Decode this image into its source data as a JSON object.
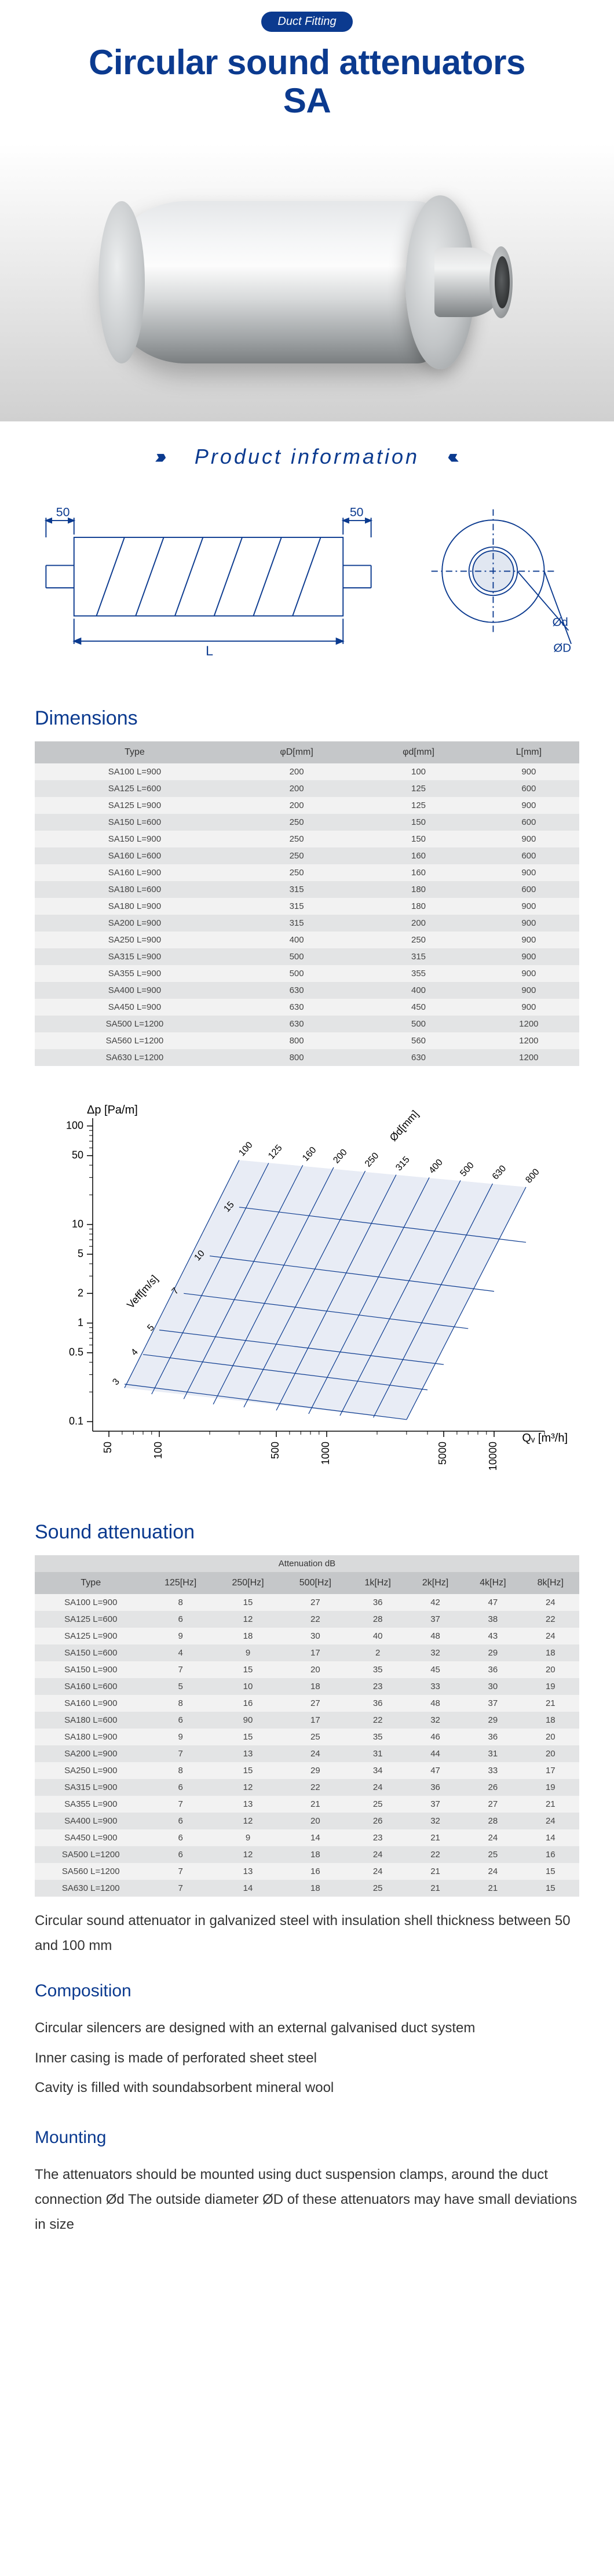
{
  "header": {
    "badge": "Duct Fitting",
    "title_line1": "Circular sound attenuators",
    "title_line2": "SA"
  },
  "section_band": {
    "title": "Product   information"
  },
  "diagram": {
    "label_50_left": "50",
    "label_50_right": "50",
    "label_L": "L",
    "label_d": "Ød",
    "label_D": "ØD",
    "stroke": "#0b3a8f"
  },
  "dimensions": {
    "heading": "Dimensions",
    "columns": [
      "Type",
      "φD[mm]",
      "φd[mm]",
      "L[mm]"
    ],
    "rows": [
      [
        "SA100 L=900",
        "200",
        "100",
        "900"
      ],
      [
        "SA125 L=600",
        "200",
        "125",
        "600"
      ],
      [
        "SA125 L=900",
        "200",
        "125",
        "900"
      ],
      [
        "SA150 L=600",
        "250",
        "150",
        "600"
      ],
      [
        "SA150 L=900",
        "250",
        "150",
        "900"
      ],
      [
        "SA160 L=600",
        "250",
        "160",
        "600"
      ],
      [
        "SA160 L=900",
        "250",
        "160",
        "900"
      ],
      [
        "SA180 L=600",
        "315",
        "180",
        "600"
      ],
      [
        "SA180 L=900",
        "315",
        "180",
        "900"
      ],
      [
        "SA200 L=900",
        "315",
        "200",
        "900"
      ],
      [
        "SA250 L=900",
        "400",
        "250",
        "900"
      ],
      [
        "SA315 L=900",
        "500",
        "315",
        "900"
      ],
      [
        "SA355 L=900",
        "500",
        "355",
        "900"
      ],
      [
        "SA400 L=900",
        "630",
        "400",
        "900"
      ],
      [
        "SA450 L=900",
        "630",
        "450",
        "900"
      ],
      [
        "SA500 L=1200",
        "630",
        "500",
        "1200"
      ],
      [
        "SA560 L=1200",
        "800",
        "560",
        "1200"
      ],
      [
        "SA630 L=1200",
        "800",
        "630",
        "1200"
      ]
    ]
  },
  "chart": {
    "y_label": "Δp [Pa/m]",
    "x_label": "Qᵥ [m³/h]",
    "diam_label": "Ød[mm]",
    "vel_label": "Veff[m/s]",
    "y_ticks": [
      "100",
      "50",
      "10",
      "5",
      "2",
      "1",
      "0.5",
      "0.1"
    ],
    "y_vals": [
      100,
      50,
      10,
      5,
      2,
      1,
      0.5,
      0.1
    ],
    "x_ticks": [
      "50",
      "100",
      "500",
      "1000",
      "5000",
      "10000"
    ],
    "x_vals": [
      50,
      100,
      500,
      1000,
      5000,
      10000
    ],
    "x_min": 40,
    "x_max": 20000,
    "y_min": 0.08,
    "y_max": 120,
    "diameters": [
      "100",
      "125",
      "160",
      "200",
      "250",
      "315",
      "400",
      "500",
      "630",
      "800"
    ],
    "diam_lines": [
      {
        "x1": 62,
        "y1": 0.22,
        "x2": 300,
        "y2": 45
      },
      {
        "x1": 90,
        "y1": 0.19,
        "x2": 450,
        "y2": 42
      },
      {
        "x1": 140,
        "y1": 0.17,
        "x2": 720,
        "y2": 40
      },
      {
        "x1": 210,
        "y1": 0.15,
        "x2": 1100,
        "y2": 38
      },
      {
        "x1": 320,
        "y1": 0.14,
        "x2": 1700,
        "y2": 35
      },
      {
        "x1": 500,
        "y1": 0.13,
        "x2": 2600,
        "y2": 32
      },
      {
        "x1": 780,
        "y1": 0.12,
        "x2": 4100,
        "y2": 30
      },
      {
        "x1": 1200,
        "y1": 0.115,
        "x2": 6300,
        "y2": 28
      },
      {
        "x1": 1900,
        "y1": 0.11,
        "x2": 9800,
        "y2": 26
      },
      {
        "x1": 3000,
        "y1": 0.105,
        "x2": 15500,
        "y2": 24
      }
    ],
    "velocities": [
      "3",
      "4",
      "5",
      "7",
      "10",
      "15"
    ],
    "vel_lines": [
      {
        "x1": 62,
        "y1": 0.24,
        "x2": 3000,
        "y2": 0.105
      },
      {
        "x1": 80,
        "y1": 0.48,
        "x2": 4000,
        "y2": 0.21
      },
      {
        "x1": 100,
        "y1": 0.85,
        "x2": 5000,
        "y2": 0.38
      },
      {
        "x1": 140,
        "y1": 2.0,
        "x2": 7000,
        "y2": 0.88
      },
      {
        "x1": 200,
        "y1": 4.8,
        "x2": 10000,
        "y2": 2.1
      },
      {
        "x1": 300,
        "y1": 15,
        "x2": 15500,
        "y2": 6.6
      }
    ],
    "stroke": "#0b3a8f",
    "fill": "#e8ecf5"
  },
  "attenuation": {
    "heading": "Sound attenuation",
    "super_header": "Attenuation dB",
    "columns": [
      "Type",
      "125[Hz]",
      "250[Hz]",
      "500[Hz]",
      "1k[Hz]",
      "2k[Hz]",
      "4k[Hz]",
      "8k[Hz]"
    ],
    "rows": [
      [
        "SA100 L=900",
        "8",
        "15",
        "27",
        "36",
        "42",
        "47",
        "24"
      ],
      [
        "SA125 L=600",
        "6",
        "12",
        "22",
        "28",
        "37",
        "38",
        "22"
      ],
      [
        "SA125 L=900",
        "9",
        "18",
        "30",
        "40",
        "48",
        "43",
        "24"
      ],
      [
        "SA150 L=600",
        "4",
        "9",
        "17",
        "2",
        "32",
        "29",
        "18"
      ],
      [
        "SA150 L=900",
        "7",
        "15",
        "20",
        "35",
        "45",
        "36",
        "20"
      ],
      [
        "SA160 L=600",
        "5",
        "10",
        "18",
        "23",
        "33",
        "30",
        "19"
      ],
      [
        "SA160 L=900",
        "8",
        "16",
        "27",
        "36",
        "48",
        "37",
        "21"
      ],
      [
        "SA180 L=600",
        "6",
        "90",
        "17",
        "22",
        "32",
        "29",
        "18"
      ],
      [
        "SA180 L=900",
        "9",
        "15",
        "25",
        "35",
        "46",
        "36",
        "20"
      ],
      [
        "SA200 L=900",
        "7",
        "13",
        "24",
        "31",
        "44",
        "31",
        "20"
      ],
      [
        "SA250 L=900",
        "8",
        "15",
        "29",
        "34",
        "47",
        "33",
        "17"
      ],
      [
        "SA315 L=900",
        "6",
        "12",
        "22",
        "24",
        "36",
        "26",
        "19"
      ],
      [
        "SA355 L=900",
        "7",
        "13",
        "21",
        "25",
        "37",
        "27",
        "21"
      ],
      [
        "SA400 L=900",
        "6",
        "12",
        "20",
        "26",
        "32",
        "28",
        "24"
      ],
      [
        "SA450 L=900",
        "6",
        "9",
        "14",
        "23",
        "21",
        "24",
        "14"
      ],
      [
        "SA500 L=1200",
        "6",
        "12",
        "18",
        "24",
        "22",
        "25",
        "16"
      ],
      [
        "SA560 L=1200",
        "7",
        "13",
        "16",
        "24",
        "21",
        "24",
        "15"
      ],
      [
        "SA630 L=1200",
        "7",
        "14",
        "18",
        "25",
        "21",
        "21",
        "15"
      ]
    ]
  },
  "description": {
    "intro": "Circular sound attenuator in galvanized steel with insulation shell thickness between 50 and 100 mm",
    "composition_h": "Composition",
    "composition_lines": [
      "Circular silencers are designed with an external galvanised duct system",
      "Inner casing is made of perforated sheet steel",
      "Cavity is filled with soundabsorbent mineral wool"
    ],
    "mounting_h": "Mounting",
    "mounting_text": "The attenuators should be mounted using duct suspension clamps, around the duct connection Ød The outside diameter ØD of these attenuators may have small deviations in size"
  }
}
